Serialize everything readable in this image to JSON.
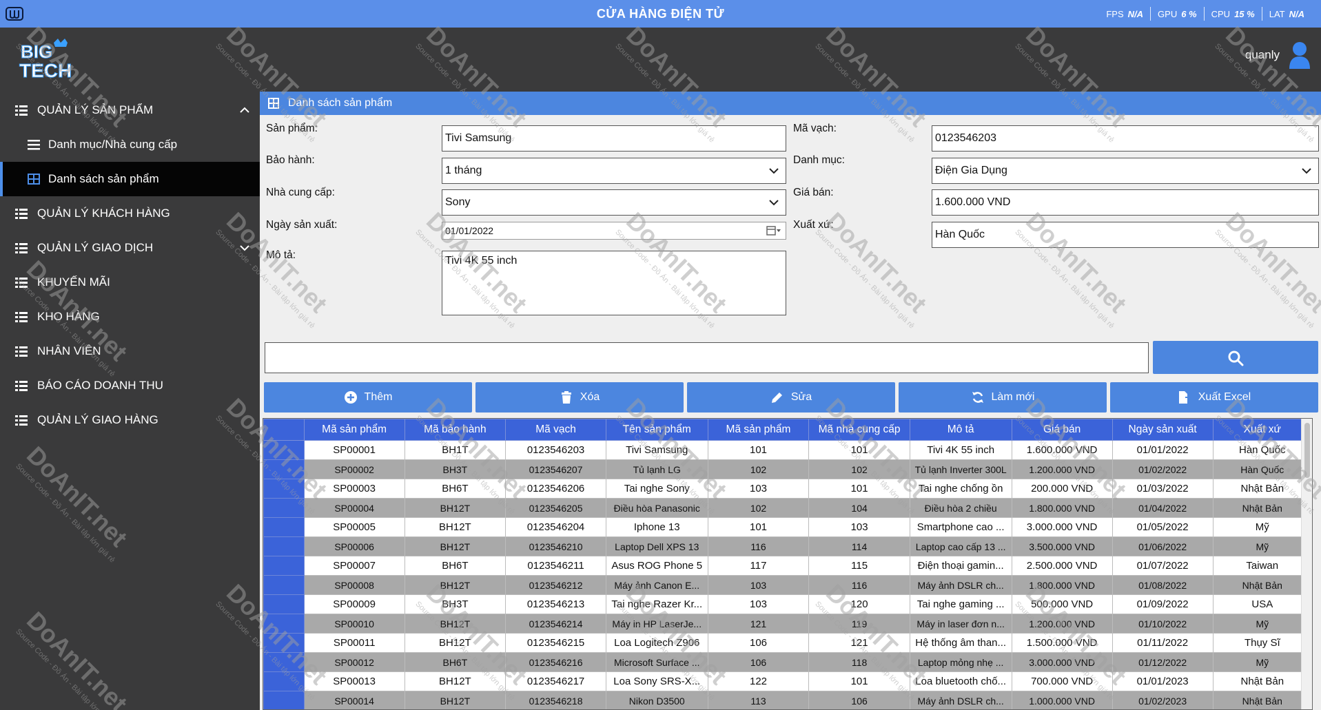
{
  "titlebar": {
    "title": "CỬA HÀNG ĐIỆN TỬ",
    "stats": [
      {
        "k": "FPS",
        "v": "N/A"
      },
      {
        "k": "GPU",
        "v": "6 %"
      },
      {
        "k": "CPU",
        "v": "15 %"
      },
      {
        "k": "LAT",
        "v": "N/A"
      }
    ]
  },
  "header": {
    "username": "quanly",
    "logo_text": "BIG TECH"
  },
  "sidebar": {
    "items": [
      {
        "label": "QUẢN LÝ SẢN PHẨM"
      },
      {
        "label": "Danh mục/Nhà cung cấp"
      },
      {
        "label": "Danh sách sản phẩm"
      },
      {
        "label": "QUẢN LÝ KHÁCH HÀNG"
      },
      {
        "label": "QUẢN LÝ GIAO DỊCH"
      },
      {
        "label": "KHUYẾN MÃI"
      },
      {
        "label": "KHO HÀNG"
      },
      {
        "label": "NHÂN VIÊN"
      },
      {
        "label": "BÁO CÁO DOANH THU"
      },
      {
        "label": "QUẢN LÝ GIAO HÀNG"
      }
    ]
  },
  "panel": {
    "title": "Danh sách sản phẩm"
  },
  "form": {
    "product_label": "Sản phẩm:",
    "product_value": "Tivi Samsung",
    "warranty_label": "Bảo hành:",
    "warranty_value": "1 tháng",
    "supplier_label": "Nhà cung cấp:",
    "supplier_value": "Sony",
    "mfg_date_label": "Ngày sản xuất:",
    "mfg_date_value": "01/01/2022",
    "desc_label": "Mô tả:",
    "desc_value": "Tivi 4K 55 inch",
    "barcode_label": "Mã vạch:",
    "barcode_value": "0123546203",
    "category_label": "Danh mục:",
    "category_value": "Điện Gia Dụng",
    "price_label": "Giá bán:",
    "price_value": "1.600.000 VND",
    "origin_label": "Xuất xứ:",
    "origin_value": "Hàn Quốc"
  },
  "search": {
    "value": ""
  },
  "actions": {
    "add": "Thêm",
    "delete": "Xóa",
    "edit": "Sửa",
    "refresh": "Làm mới",
    "export": "Xuất Excel"
  },
  "table": {
    "columns": [
      "Mã sản phẩm",
      "Mã bảo hành",
      "Mã vạch",
      "Tên sản phẩm",
      "Mã sản phẩm",
      "Mã nhà cung cấp",
      "Mô tả",
      "Giá bán",
      "Ngày sản xuất",
      "Xuất xứ"
    ],
    "rows": [
      [
        "SP00001",
        "BH1T",
        "0123546203",
        "Tivi Samsung",
        "101",
        "101",
        "Tivi 4K 55 inch",
        "1.600.000 VND",
        "01/01/2022",
        "Hàn Quốc"
      ],
      [
        "SP00002",
        "BH3T",
        "0123546207",
        "Tủ lạnh LG",
        "102",
        "102",
        "Tủ lạnh Inverter 300L",
        "1.200.000 VND",
        "01/02/2022",
        "Hàn Quốc"
      ],
      [
        "SP00003",
        "BH6T",
        "0123546206",
        "Tai nghe Sony",
        "103",
        "101",
        "Tai nghe chống ồn",
        "200.000 VND",
        "01/03/2022",
        "Nhật Bản"
      ],
      [
        "SP00004",
        "BH12T",
        "0123546205",
        "Điều hòa Panasonic",
        "102",
        "104",
        "Điều hòa 2 chiều",
        "1.800.000 VND",
        "01/04/2022",
        "Nhật Bản"
      ],
      [
        "SP00005",
        "BH12T",
        "0123546204",
        "Iphone 13",
        "101",
        "103",
        "Smartphone cao ...",
        "3.000.000 VND",
        "01/05/2022",
        "Mỹ"
      ],
      [
        "SP00006",
        "BH12T",
        "0123546210",
        "Laptop Dell XPS 13",
        "116",
        "114",
        "Laptop cao cấp 13 ...",
        "3.500.000 VND",
        "01/06/2022",
        "Mỹ"
      ],
      [
        "SP00007",
        "BH6T",
        "0123546211",
        "Asus ROG Phone 5",
        "117",
        "115",
        "Điện thoại gamin...",
        "2.500.000 VND",
        "01/07/2022",
        "Taiwan"
      ],
      [
        "SP00008",
        "BH12T",
        "0123546212",
        "Máy ảnh Canon E...",
        "103",
        "116",
        "Máy ảnh DSLR ch...",
        "1.800.000 VND",
        "01/08/2022",
        "Nhật Bản"
      ],
      [
        "SP00009",
        "BH3T",
        "0123546213",
        "Tai nghe Razer Kr...",
        "103",
        "120",
        "Tai nghe gaming ...",
        "500.000 VND",
        "01/09/2022",
        "USA"
      ],
      [
        "SP00010",
        "BH12T",
        "0123546214",
        "Máy in HP LaserJe...",
        "121",
        "119",
        "Máy in laser đơn n...",
        "1.200.000 VND",
        "01/10/2022",
        "Mỹ"
      ],
      [
        "SP00011",
        "BH12T",
        "0123546215",
        "Loa Logitech Z906",
        "106",
        "121",
        "Hệ thống âm than...",
        "1.500.000 VND",
        "01/11/2022",
        "Thụy Sĩ"
      ],
      [
        "SP00012",
        "BH6T",
        "0123546216",
        "Microsoft Surface ...",
        "106",
        "118",
        "Laptop mỏng nhẹ ...",
        "3.000.000 VND",
        "01/12/2022",
        "Mỹ"
      ],
      [
        "SP00013",
        "BH12T",
        "0123546217",
        "Loa Sony SRS-X...",
        "122",
        "101",
        "Loa bluetooth chố...",
        "700.000 VND",
        "01/01/2023",
        "Nhật Bản"
      ],
      [
        "SP00014",
        "BH12T",
        "0123546218",
        "Nikon D3500",
        "113",
        "106",
        "Máy ảnh DSLR ch...",
        "1.000.000 VND",
        "01/02/2023",
        "Nhật Bản"
      ]
    ]
  },
  "watermark": {
    "text": "DoAnIT.net",
    "sub": "Source Code - Đồ Án - Bài tập lớn giá rẻ"
  },
  "colors": {
    "accent": "#4c86df",
    "titlebar": "#5b8fe9",
    "sidebar_bg": "#3a3a3b",
    "table_header": "#3b63d9"
  }
}
